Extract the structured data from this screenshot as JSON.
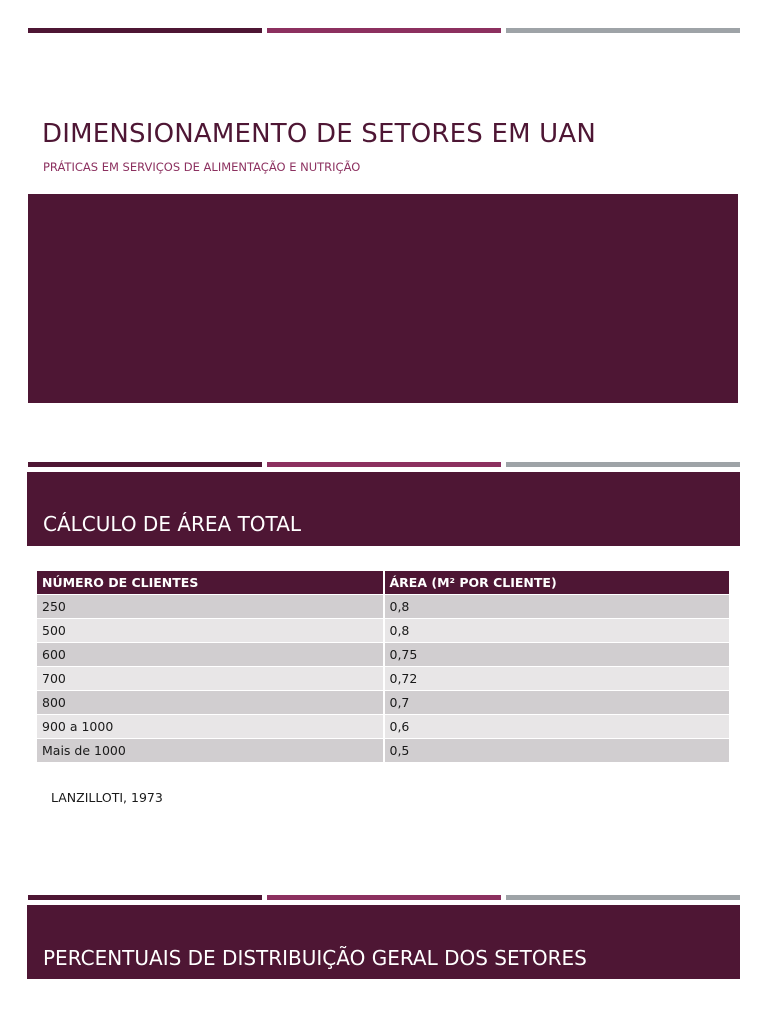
{
  "colors": {
    "primary": "#4e1634",
    "accent": "#8c305f",
    "gray": "#9ea3a7",
    "title_text": "#4e1634",
    "subtitle_text": "#8c305f"
  },
  "slide1": {
    "title": "DIMENSIONAMENTO DE SETORES EM UAN",
    "subtitle": "PRÁTICAS EM SERVIÇOS DE ALIMENTAÇÃO E NUTRIÇÃO"
  },
  "slide2": {
    "title": "CÁLCULO DE ÁREA TOTAL",
    "table": {
      "headers": [
        "NÚMERO DE CLIENTES",
        "ÁREA (M² POR CLIENTE)"
      ],
      "rows": [
        [
          "250",
          "0,8"
        ],
        [
          "500",
          "0,8"
        ],
        [
          "600",
          "0,75"
        ],
        [
          "700",
          "0,72"
        ],
        [
          "800",
          "0,7"
        ],
        [
          "900 a 1000",
          "0,6"
        ],
        [
          "Mais de 1000",
          "0,5"
        ]
      ]
    },
    "source": "LANZILLOTI, 1973"
  },
  "slide3": {
    "title": "PERCENTUAIS DE DISTRIBUIÇÃO GERAL DOS SETORES"
  }
}
